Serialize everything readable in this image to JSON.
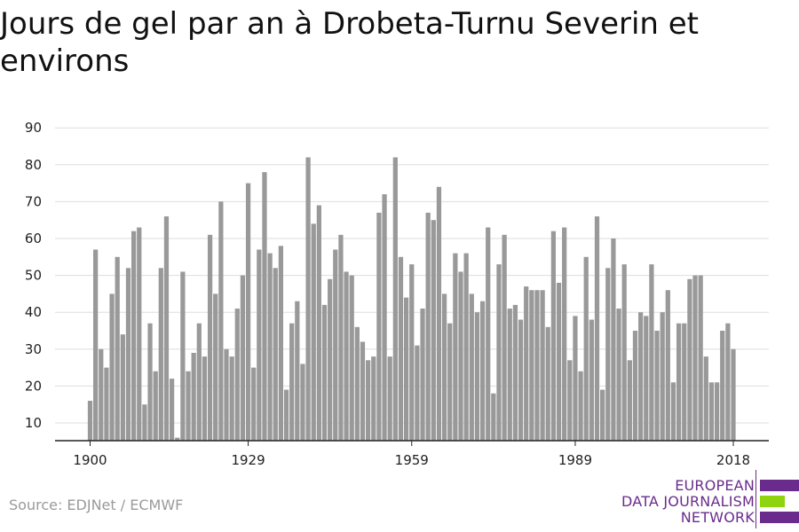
{
  "header": {
    "title": "Jours de gel par an à Drobeta-Turnu Severin et environs"
  },
  "footer": {
    "source": "Source: EDJNet / ECMWF",
    "logo_line1": "EUROPEAN",
    "logo_line2": "DATA JOURNALISM",
    "logo_line3": "NETWORK"
  },
  "colors": {
    "bar": "#999999",
    "grid": "#dddddd",
    "axis": "#222222",
    "logo_purple": "#6a2c8c",
    "logo_green": "#8fd40f"
  },
  "chart_data": {
    "type": "bar",
    "title": "Jours de gel par an à Drobeta-Turnu Severin et environs",
    "xlabel": "",
    "ylabel": "",
    "ylim": [
      5,
      90
    ],
    "y_ticks": [
      10,
      20,
      30,
      40,
      50,
      60,
      70,
      80,
      90
    ],
    "x_ticks": [
      1900,
      1929,
      1959,
      1989,
      2018
    ],
    "grid": true,
    "x_start": 1900,
    "x_end": 2018,
    "values": [
      16,
      57,
      30,
      25,
      45,
      55,
      34,
      52,
      62,
      63,
      15,
      37,
      24,
      52,
      66,
      22,
      6,
      51,
      24,
      29,
      37,
      28,
      61,
      45,
      70,
      30,
      28,
      41,
      50,
      75,
      25,
      57,
      78,
      56,
      52,
      58,
      19,
      37,
      43,
      26,
      82,
      64,
      69,
      42,
      49,
      57,
      61,
      51,
      50,
      36,
      32,
      27,
      28,
      67,
      72,
      28,
      82,
      55,
      44,
      53,
      31,
      41,
      67,
      65,
      74,
      45,
      37,
      56,
      51,
      56,
      45,
      40,
      43,
      63,
      18,
      53,
      61,
      41,
      42,
      38,
      47,
      46,
      46,
      46,
      36,
      62,
      48,
      63,
      27,
      39,
      24,
      55,
      38,
      66,
      19,
      52,
      60,
      41,
      53,
      27,
      35,
      40,
      39,
      53,
      35,
      40,
      46,
      21,
      37,
      37,
      49,
      50,
      50,
      28,
      21,
      21,
      35,
      37,
      30
    ]
  }
}
